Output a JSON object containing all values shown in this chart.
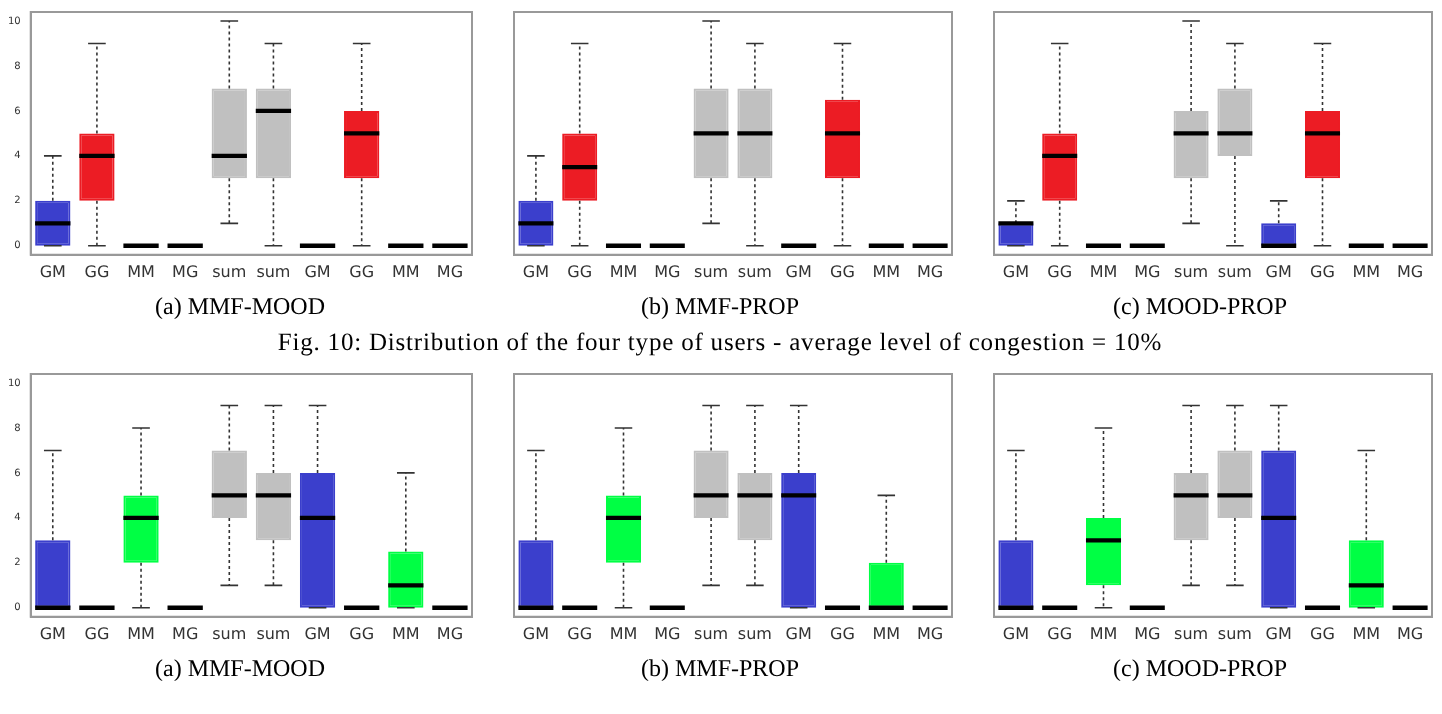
{
  "chart_data": [
    {
      "type": "box",
      "xlabel": "(a) MMF-MOOD",
      "categories": [
        "GM",
        "GG",
        "MM",
        "MG",
        "sum",
        "sum",
        "GM",
        "GG",
        "MM",
        "MG"
      ],
      "colors": [
        "#3b3fcc",
        "#ec1c24",
        "#000000",
        "#000000",
        "#c0c0c0",
        "#c0c0c0",
        "#000000",
        "#ec1c24",
        "#000000",
        "#000000"
      ],
      "ylim": [
        -0.4,
        10.4
      ],
      "yticks": [
        0,
        2,
        4,
        6,
        8,
        10
      ],
      "legend": false,
      "grid": false,
      "boxes": [
        {
          "low": 0,
          "q1": 0,
          "median": 1,
          "q3": 2,
          "high": 4
        },
        {
          "low": 0,
          "q1": 2,
          "median": 4,
          "q3": 5,
          "high": 9
        },
        {
          "low": 0,
          "q1": 0,
          "median": 0,
          "q3": 0,
          "high": 0
        },
        {
          "low": 0,
          "q1": 0,
          "median": 0,
          "q3": 0,
          "high": 0
        },
        {
          "low": 1,
          "q1": 3,
          "median": 4,
          "q3": 7,
          "high": 10
        },
        {
          "low": 0,
          "q1": 3,
          "median": 6,
          "q3": 7,
          "high": 9
        },
        {
          "low": 0,
          "q1": 0,
          "median": 0,
          "q3": 0,
          "high": 0
        },
        {
          "low": 0,
          "q1": 3,
          "median": 5,
          "q3": 6,
          "high": 9
        },
        {
          "low": 0,
          "q1": 0,
          "median": 0,
          "q3": 0,
          "high": 0
        },
        {
          "low": 0,
          "q1": 0,
          "median": 0,
          "q3": 0,
          "high": 0
        }
      ]
    },
    {
      "type": "box",
      "xlabel": "(b) MMF-PROP",
      "categories": [
        "GM",
        "GG",
        "MM",
        "MG",
        "sum",
        "sum",
        "GM",
        "GG",
        "MM",
        "MG"
      ],
      "colors": [
        "#3b3fcc",
        "#ec1c24",
        "#000000",
        "#000000",
        "#c0c0c0",
        "#c0c0c0",
        "#000000",
        "#ec1c24",
        "#000000",
        "#000000"
      ],
      "ylim": [
        -0.4,
        10.4
      ],
      "yticks": [
        0,
        2,
        4,
        6,
        8,
        10
      ],
      "tick_labels": "x",
      "legend": false,
      "grid": false,
      "boxes": [
        {
          "low": 0,
          "q1": 0,
          "median": 1,
          "q3": 2,
          "high": 4
        },
        {
          "low": 0,
          "q1": 2,
          "median": 3.5,
          "q3": 5,
          "high": 9
        },
        {
          "low": 0,
          "q1": 0,
          "median": 0,
          "q3": 0,
          "high": 0
        },
        {
          "low": 0,
          "q1": 0,
          "median": 0,
          "q3": 0,
          "high": 0
        },
        {
          "low": 1,
          "q1": 3,
          "median": 5,
          "q3": 7,
          "high": 10
        },
        {
          "low": 0,
          "q1": 3,
          "median": 5,
          "q3": 7,
          "high": 9
        },
        {
          "low": 0,
          "q1": 0,
          "median": 0,
          "q3": 0,
          "high": 0
        },
        {
          "low": 0,
          "q1": 3,
          "median": 5,
          "q3": 6.5,
          "high": 9
        },
        {
          "low": 0,
          "q1": 0,
          "median": 0,
          "q3": 0,
          "high": 0
        },
        {
          "low": 0,
          "q1": 0,
          "median": 0,
          "q3": 0,
          "high": 0
        }
      ]
    },
    {
      "type": "box",
      "xlabel": "(c) MOOD-PROP",
      "categories": [
        "GM",
        "GG",
        "MM",
        "MG",
        "sum",
        "sum",
        "GM",
        "GG",
        "MM",
        "MG"
      ],
      "colors": [
        "#3b3fcc",
        "#ec1c24",
        "#000000",
        "#000000",
        "#c0c0c0",
        "#c0c0c0",
        "#3b3fcc",
        "#ec1c24",
        "#000000",
        "#000000"
      ],
      "ylim": [
        -0.4,
        10.4
      ],
      "yticks": [
        0,
        2,
        4,
        6,
        8,
        10
      ],
      "tick_labels": "x",
      "legend": false,
      "grid": false,
      "annotations": [
        "Fig. 10: Distribution of the four type of users - average level of congestion = 10%"
      ],
      "boxes": [
        {
          "low": 0,
          "q1": 0,
          "median": 1,
          "q3": 1,
          "high": 2
        },
        {
          "low": 0,
          "q1": 2,
          "median": 4,
          "q3": 5,
          "high": 9
        },
        {
          "low": 0,
          "q1": 0,
          "median": 0,
          "q3": 0,
          "high": 0
        },
        {
          "low": 0,
          "q1": 0,
          "median": 0,
          "q3": 0,
          "high": 0
        },
        {
          "low": 1,
          "q1": 3,
          "median": 5,
          "q3": 6,
          "high": 10
        },
        {
          "low": 0,
          "q1": 4,
          "median": 5,
          "q3": 7,
          "high": 9
        },
        {
          "low": 0,
          "q1": 0,
          "median": 0,
          "q3": 1,
          "high": 2
        },
        {
          "low": 0,
          "q1": 3,
          "median": 5,
          "q3": 6,
          "high": 9
        },
        {
          "low": 0,
          "q1": 0,
          "median": 0,
          "q3": 0,
          "high": 0
        },
        {
          "low": 0,
          "q1": 0,
          "median": 0,
          "q3": 0,
          "high": 0
        }
      ]
    },
    {
      "type": "box",
      "xlabel": "(a) MMF-MOOD",
      "categories": [
        "GM",
        "GG",
        "MM",
        "MG",
        "sum",
        "sum",
        "GM",
        "GG",
        "MM",
        "MG"
      ],
      "colors": [
        "#3b3fcc",
        "#000000",
        "#00ff44",
        "#000000",
        "#c0c0c0",
        "#c0c0c0",
        "#3b3fcc",
        "#000000",
        "#00ff44",
        "#000000"
      ],
      "ylim": [
        -0.4,
        10.4
      ],
      "yticks": [
        0,
        2,
        4,
        6,
        8,
        10
      ],
      "legend": false,
      "grid": false,
      "boxes": [
        {
          "low": 0,
          "q1": 0,
          "median": 0,
          "q3": 3,
          "high": 7
        },
        {
          "low": 0,
          "q1": 0,
          "median": 0,
          "q3": 0,
          "high": 0
        },
        {
          "low": 0,
          "q1": 2,
          "median": 4,
          "q3": 5,
          "high": 8
        },
        {
          "low": 0,
          "q1": 0,
          "median": 0,
          "q3": 0,
          "high": 0
        },
        {
          "low": 1,
          "q1": 4,
          "median": 5,
          "q3": 7,
          "high": 9
        },
        {
          "low": 1,
          "q1": 3,
          "median": 5,
          "q3": 6,
          "high": 9
        },
        {
          "low": 0,
          "q1": 0,
          "median": 4,
          "q3": 6,
          "high": 9
        },
        {
          "low": 0,
          "q1": 0,
          "median": 0,
          "q3": 0,
          "high": 0
        },
        {
          "low": 0,
          "q1": 0,
          "median": 1,
          "q3": 2.5,
          "high": 6
        },
        {
          "low": 0,
          "q1": 0,
          "median": 0,
          "q3": 0,
          "high": 0
        }
      ]
    },
    {
      "type": "box",
      "xlabel": "(b) MMF-PROP",
      "categories": [
        "GM",
        "GG",
        "MM",
        "MG",
        "sum",
        "sum",
        "GM",
        "GG",
        "MM",
        "MG"
      ],
      "colors": [
        "#3b3fcc",
        "#000000",
        "#00ff44",
        "#000000",
        "#c0c0c0",
        "#c0c0c0",
        "#3b3fcc",
        "#000000",
        "#00ff44",
        "#000000"
      ],
      "ylim": [
        -0.4,
        10.4
      ],
      "yticks": [
        0,
        2,
        4,
        6,
        8,
        10
      ],
      "tick_labels": "x",
      "legend": false,
      "grid": false,
      "boxes": [
        {
          "low": 0,
          "q1": 0,
          "median": 0,
          "q3": 3,
          "high": 7
        },
        {
          "low": 0,
          "q1": 0,
          "median": 0,
          "q3": 0,
          "high": 0
        },
        {
          "low": 0,
          "q1": 2,
          "median": 4,
          "q3": 5,
          "high": 8
        },
        {
          "low": 0,
          "q1": 0,
          "median": 0,
          "q3": 0,
          "high": 0
        },
        {
          "low": 1,
          "q1": 4,
          "median": 5,
          "q3": 7,
          "high": 9
        },
        {
          "low": 1,
          "q1": 3,
          "median": 5,
          "q3": 6,
          "high": 9
        },
        {
          "low": 0,
          "q1": 0,
          "median": 5,
          "q3": 6,
          "high": 9
        },
        {
          "low": 0,
          "q1": 0,
          "median": 0,
          "q3": 0,
          "high": 0
        },
        {
          "low": 0,
          "q1": 0,
          "median": 0,
          "q3": 2,
          "high": 5
        },
        {
          "low": 0,
          "q1": 0,
          "median": 0,
          "q3": 0,
          "high": 0
        }
      ]
    },
    {
      "type": "box",
      "xlabel": "(c) MOOD-PROP",
      "categories": [
        "GM",
        "GG",
        "MM",
        "MG",
        "sum",
        "sum",
        "GM",
        "GG",
        "MM",
        "MG"
      ],
      "colors": [
        "#3b3fcc",
        "#000000",
        "#00ff44",
        "#000000",
        "#c0c0c0",
        "#c0c0c0",
        "#3b3fcc",
        "#000000",
        "#00ff44",
        "#000000"
      ],
      "ylim": [
        -0.4,
        10.4
      ],
      "yticks": [
        0,
        2,
        4,
        6,
        8,
        10
      ],
      "tick_labels": "x",
      "legend": false,
      "grid": false,
      "boxes": [
        {
          "low": 0,
          "q1": 0,
          "median": 0,
          "q3": 3,
          "high": 7
        },
        {
          "low": 0,
          "q1": 0,
          "median": 0,
          "q3": 0,
          "high": 0
        },
        {
          "low": 0,
          "q1": 1,
          "median": 3,
          "q3": 4,
          "high": 8
        },
        {
          "low": 0,
          "q1": 0,
          "median": 0,
          "q3": 0,
          "high": 0
        },
        {
          "low": 1,
          "q1": 3,
          "median": 5,
          "q3": 6,
          "high": 9
        },
        {
          "low": 1,
          "q1": 4,
          "median": 5,
          "q3": 7,
          "high": 9
        },
        {
          "low": 0,
          "q1": 0,
          "median": 4,
          "q3": 7,
          "high": 9
        },
        {
          "low": 0,
          "q1": 0,
          "median": 0,
          "q3": 0,
          "high": 0
        },
        {
          "low": 0,
          "q1": 0,
          "median": 1,
          "q3": 3,
          "high": 7
        },
        {
          "low": 0,
          "q1": 0,
          "median": 0,
          "q3": 0,
          "high": 0
        }
      ]
    }
  ]
}
